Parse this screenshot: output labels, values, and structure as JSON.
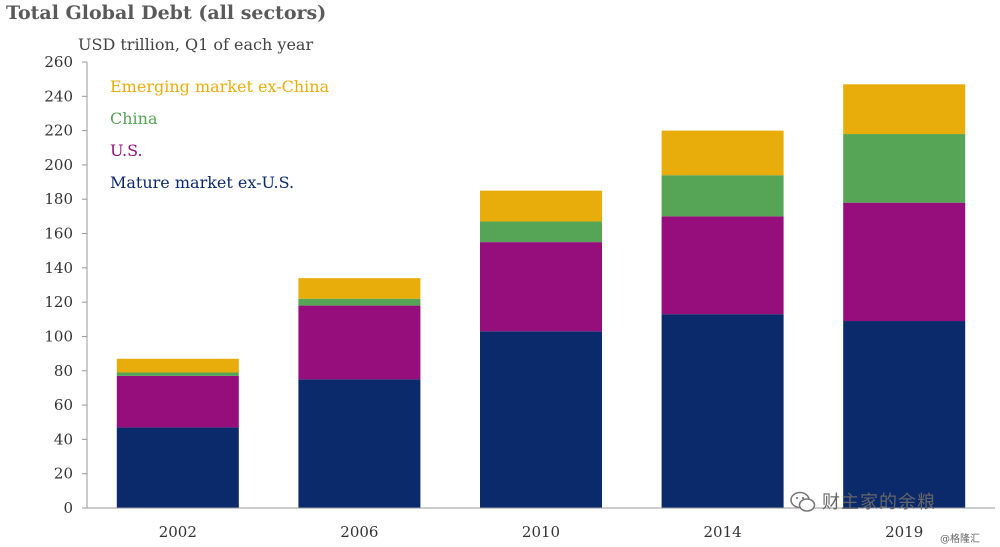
{
  "title": "Total Global Debt (all sectors)",
  "chart_data": {
    "type": "bar",
    "stacked": true,
    "title": "Total Global Debt (all sectors)",
    "ylabel": "USD trillion, Q1 of each year",
    "xlabel": "",
    "categories": [
      "2002",
      "2006",
      "2010",
      "2014",
      "2019"
    ],
    "ylim": [
      0,
      260
    ],
    "yticks": [
      0,
      20,
      40,
      60,
      80,
      100,
      120,
      140,
      160,
      180,
      200,
      220,
      240,
      260
    ],
    "grid": false,
    "legend_position": "top-left",
    "series": [
      {
        "name": "Mature market ex-U.S.",
        "color": "#0b2a6b",
        "values": [
          47,
          75,
          103,
          113,
          109
        ]
      },
      {
        "name": "U.S.",
        "color": "#960e7c",
        "values": [
          30,
          43,
          52,
          57,
          69
        ]
      },
      {
        "name": "China",
        "color": "#56a455",
        "values": [
          2,
          4,
          12,
          24,
          40
        ]
      },
      {
        "name": "Emerging market ex-China",
        "color": "#e8ad0a",
        "values": [
          8,
          12,
          18,
          26,
          29
        ]
      }
    ]
  },
  "watermark": {
    "main": "财主家的余粮",
    "sub": "@格隆汇"
  }
}
